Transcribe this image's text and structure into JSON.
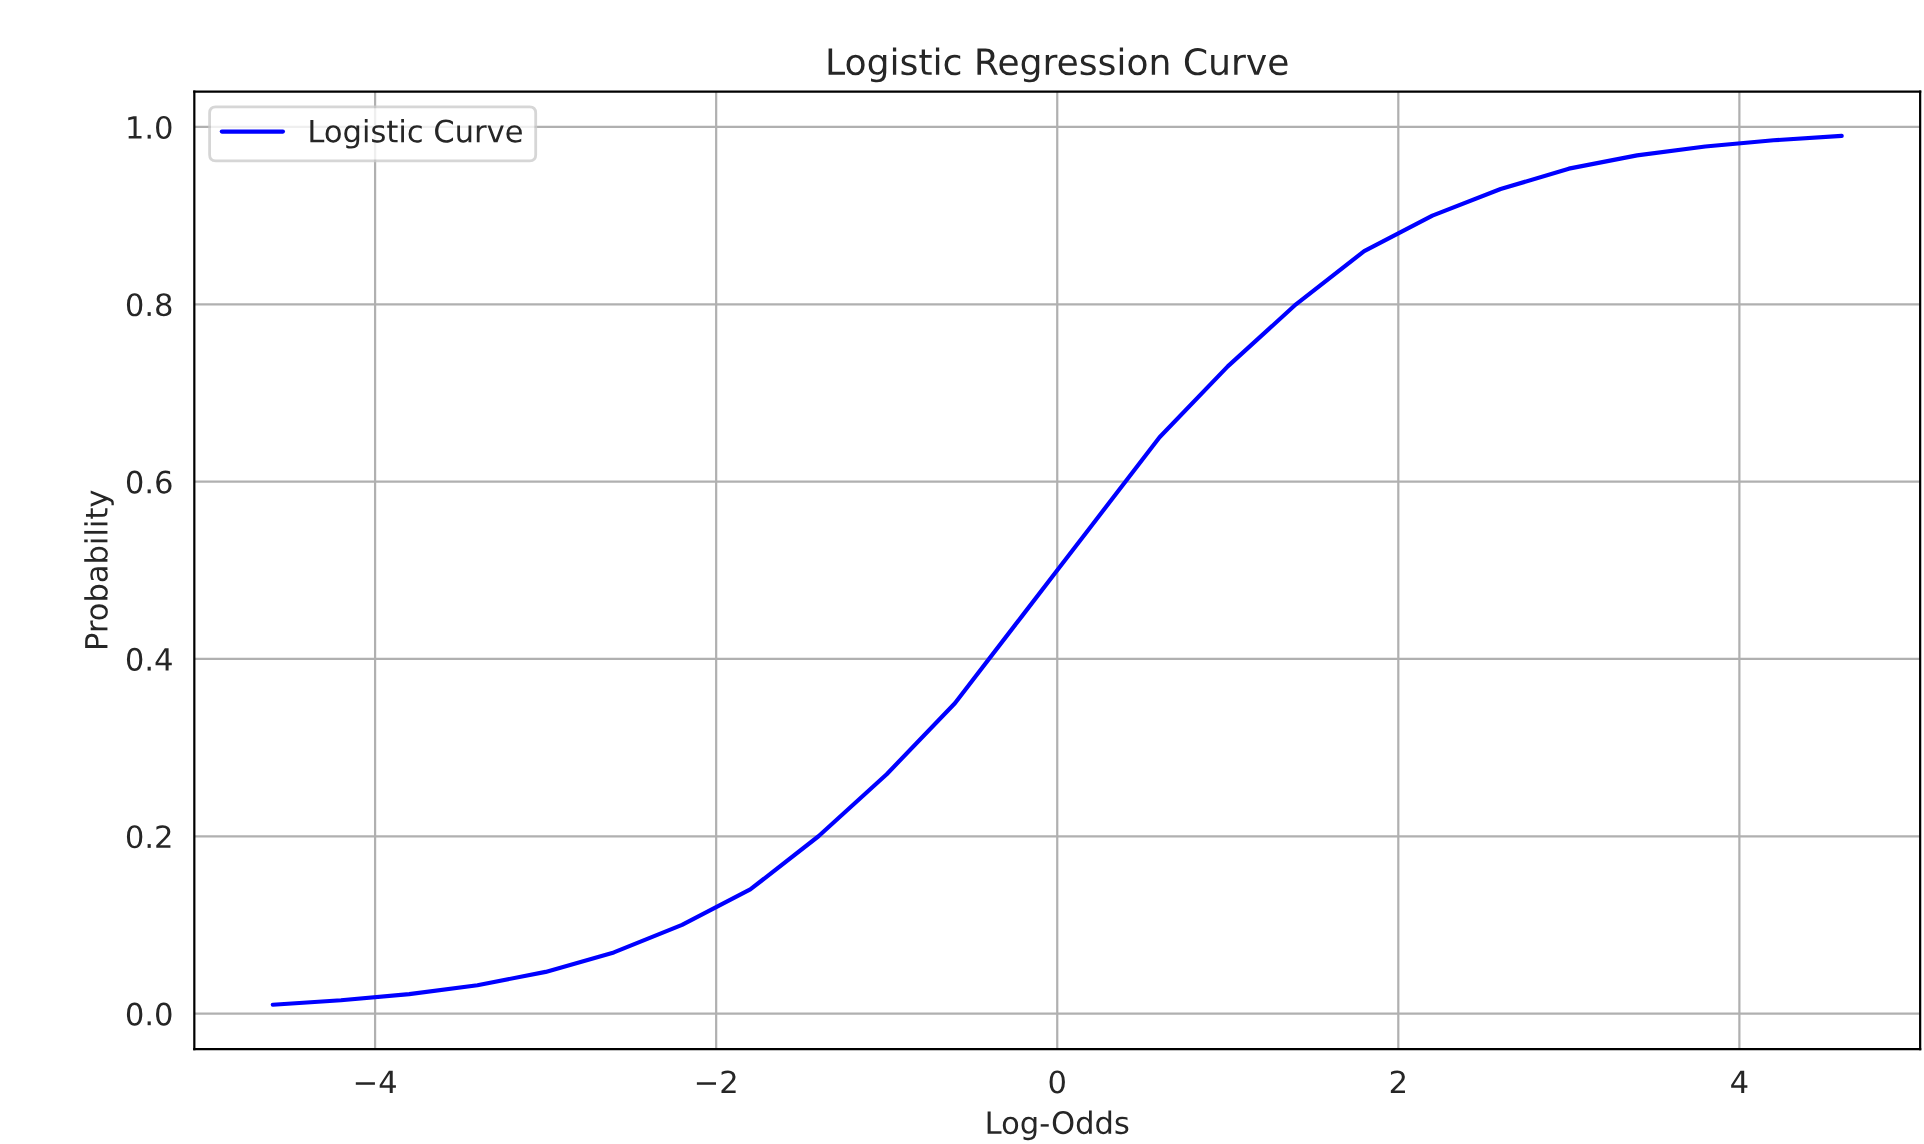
{
  "chart_data": {
    "type": "line",
    "title": "Logistic Regression Curve",
    "xlabel": "Log-Odds",
    "ylabel": "Probability",
    "series": [
      {
        "name": "Logistic Curve",
        "color": "#0000ff",
        "x": [
          -4.6,
          -4.2,
          -3.8,
          -3.4,
          -3.0,
          -2.6,
          -2.2,
          -1.8,
          -1.4,
          -1.0,
          -0.6,
          -0.2,
          0,
          0.2,
          0.6,
          1.0,
          1.4,
          1.8,
          2.2,
          2.6,
          3.0,
          3.4,
          3.8,
          4.2,
          4.6
        ],
        "values": [
          0.01,
          0.015,
          0.022,
          0.032,
          0.047,
          0.069,
          0.1,
          0.14,
          0.2,
          0.27,
          0.35,
          0.45,
          0.5,
          0.55,
          0.65,
          0.73,
          0.8,
          0.86,
          0.9,
          0.93,
          0.953,
          0.968,
          0.978,
          0.985,
          0.99
        ]
      }
    ],
    "xlim": [
      -5.06,
      5.06
    ],
    "ylim": [
      -0.04,
      1.04
    ],
    "xticks": [
      {
        "value": -4,
        "label": "−4"
      },
      {
        "value": -2,
        "label": "−2"
      },
      0,
      2,
      4
    ],
    "yticks": [
      {
        "value": 0,
        "label": "0.0"
      },
      {
        "value": 0.2,
        "label": "0.2"
      },
      {
        "value": 0.4,
        "label": "0.4"
      },
      {
        "value": 0.6,
        "label": "0.6"
      },
      {
        "value": 0.8,
        "label": "0.8"
      },
      {
        "value": 1.0,
        "label": "1.0"
      }
    ],
    "grid": true,
    "legend": "top left",
    "line_style": "solid",
    "marker": "none"
  }
}
